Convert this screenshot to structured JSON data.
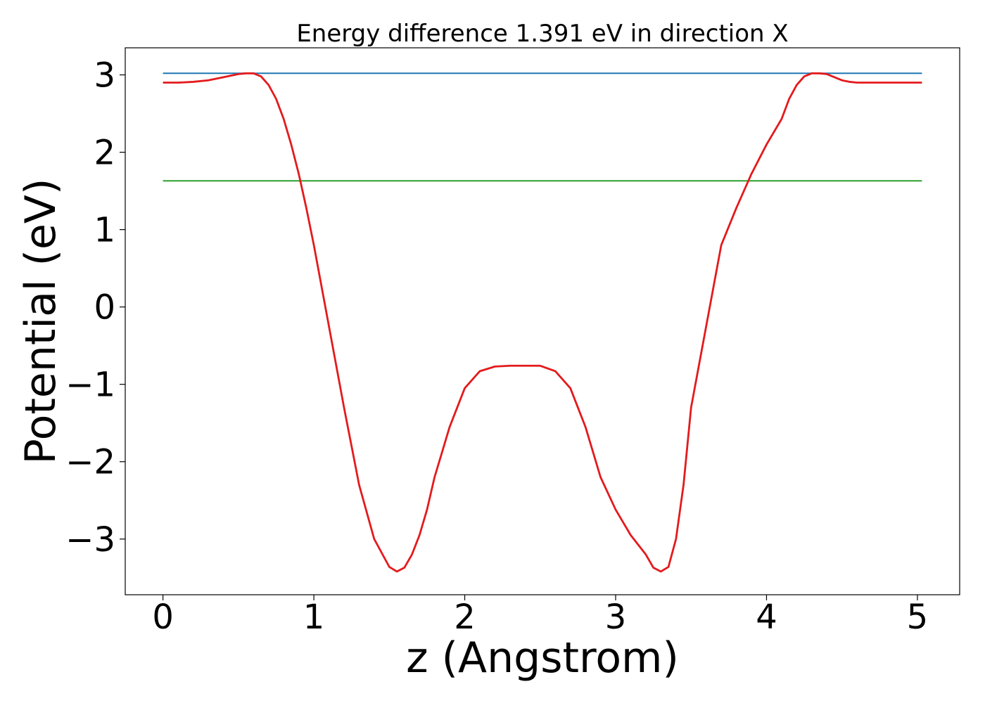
{
  "chart_data": {
    "type": "line",
    "title": "Energy difference 1.391 eV in direction X",
    "xlabel": "z (Angstrom)",
    "ylabel": "Potential (eV)",
    "xlim": [
      -0.25,
      5.28
    ],
    "ylim": [
      -3.72,
      3.35
    ],
    "xticks": [
      0,
      1,
      2,
      3,
      4,
      5
    ],
    "xtick_labels": [
      "0",
      "1",
      "2",
      "3",
      "4",
      "5"
    ],
    "yticks": [
      3,
      2,
      1,
      0,
      -1,
      -2,
      -3
    ],
    "ytick_labels": [
      "3",
      "2",
      "1",
      "0",
      "−1",
      "−2",
      "−3"
    ],
    "grid": false,
    "legend": "none",
    "series": [
      {
        "color": "#1f77b4",
        "x": [
          0.0,
          5.03
        ],
        "y": [
          3.02,
          3.02
        ]
      },
      {
        "color": "#2ca02c",
        "x": [
          0.0,
          5.03
        ],
        "y": [
          1.63,
          1.63
        ]
      },
      {
        "color": "#e41a1c",
        "x": [
          0.0,
          0.1,
          0.2,
          0.3,
          0.4,
          0.5,
          0.55,
          0.6,
          0.65,
          0.7,
          0.75,
          0.8,
          0.85,
          0.9,
          0.95,
          1.0,
          1.1,
          1.2,
          1.3,
          1.4,
          1.5,
          1.55,
          1.6,
          1.65,
          1.7,
          1.75,
          1.8,
          1.9,
          2.0,
          2.1,
          2.2,
          2.3,
          2.4,
          2.5,
          2.6,
          2.7,
          2.8,
          2.9,
          3.0,
          3.1,
          3.2,
          3.25,
          3.3,
          3.35,
          3.4,
          3.45,
          3.5,
          3.6,
          3.7,
          3.8,
          3.9,
          4.0,
          4.1,
          4.15,
          4.2,
          4.25,
          4.3,
          4.35,
          4.4,
          4.45,
          4.5,
          4.55,
          4.6,
          4.7,
          4.8,
          4.9,
          5.03
        ],
        "y": [
          2.9,
          2.9,
          2.91,
          2.93,
          2.97,
          3.01,
          3.02,
          3.02,
          2.98,
          2.87,
          2.69,
          2.43,
          2.1,
          1.72,
          1.28,
          0.8,
          -0.25,
          -1.3,
          -2.3,
          -3.0,
          -3.36,
          -3.42,
          -3.37,
          -3.2,
          -2.95,
          -2.62,
          -2.2,
          -1.55,
          -1.05,
          -0.83,
          -0.77,
          -0.76,
          -0.76,
          -0.76,
          -0.83,
          -1.05,
          -1.55,
          -2.2,
          -2.62,
          -2.95,
          -3.2,
          -3.37,
          -3.42,
          -3.36,
          -3.0,
          -2.3,
          -1.3,
          -0.25,
          0.8,
          1.28,
          1.72,
          2.1,
          2.43,
          2.69,
          2.87,
          2.98,
          3.02,
          3.02,
          3.01,
          2.97,
          2.93,
          2.91,
          2.9,
          2.9,
          2.9,
          2.9,
          2.9
        ]
      }
    ]
  }
}
